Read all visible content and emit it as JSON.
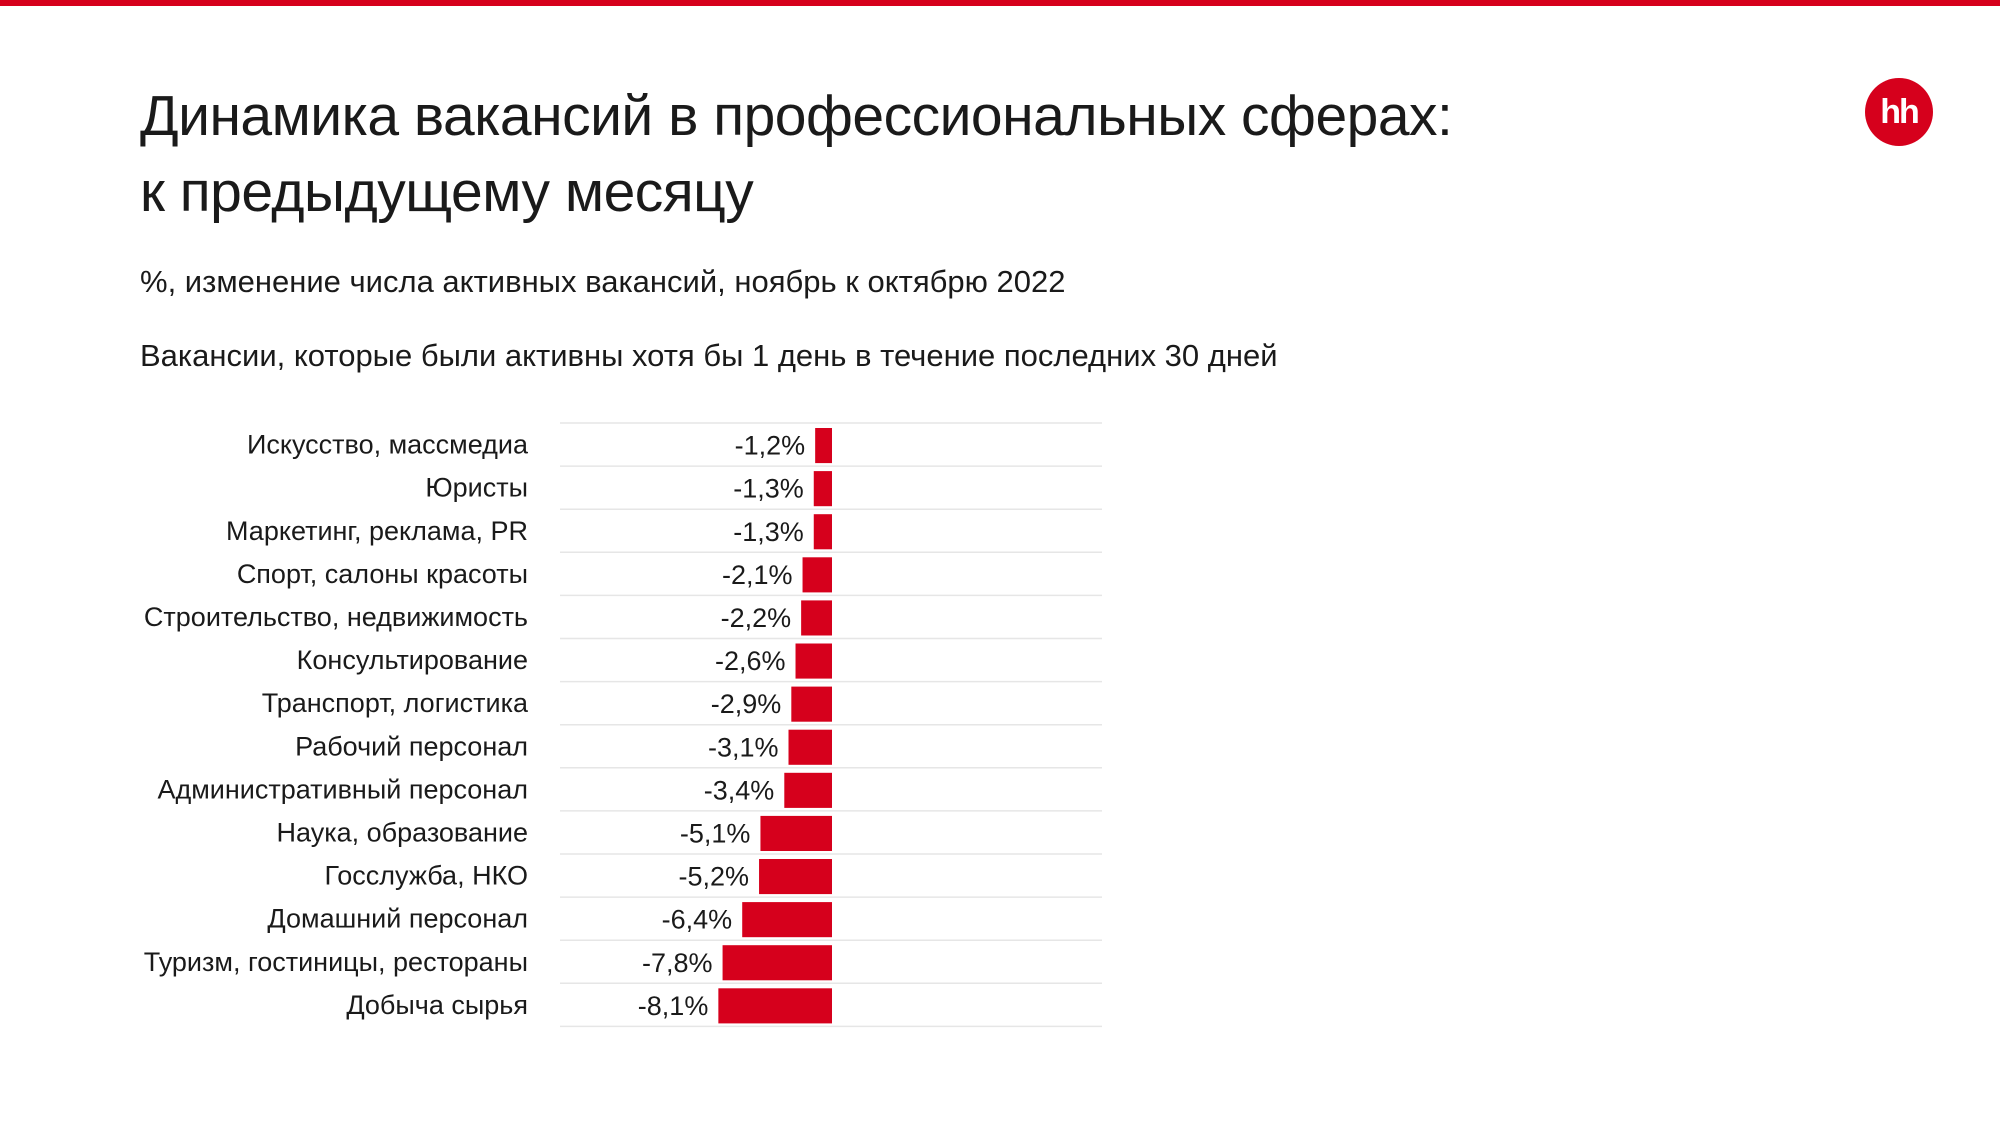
{
  "header": {
    "title_line1": "Динамика вакансий в профессиональных сферах:",
    "title_line2": "к предыдущему месяцу",
    "subtitle": "%, изменение числа активных вакансий, ноябрь к октябрю 2022",
    "note": "Вакансии, которые были активны хотя бы 1 день в течение последних 30 дней",
    "logo_text": "hh"
  },
  "colors": {
    "accent": "#d6001c",
    "gridline": "#e6e6e6",
    "text": "#1a1a1a"
  },
  "chart_data": {
    "type": "bar",
    "orientation": "horizontal",
    "title": "Динамика вакансий в профессиональных сферах: к предыдущему месяцу",
    "subtitle": "%, изменение числа активных вакансий, ноябрь к октябрю 2022",
    "grid": true,
    "categories": [
      "Искусство, массмедиа",
      "Юристы",
      "Маркетинг, реклама, PR",
      "Спорт, салоны красоты",
      "Строительство, недвижимость",
      "Консультирование",
      "Транспорт, логистика",
      "Рабочий персонал",
      "Административный персонал",
      "Наука, образование",
      "Госслужба, НКО",
      "Домашний персонал",
      "Туризм, гостиницы, рестораны",
      "Добыча сырья"
    ],
    "values": [
      -1.2,
      -1.3,
      -1.3,
      -2.1,
      -2.2,
      -2.6,
      -2.9,
      -3.1,
      -3.4,
      -5.1,
      -5.2,
      -6.4,
      -7.8,
      -8.1
    ],
    "labels": [
      "-1,2%",
      "-1,3%",
      "-1,3%",
      "-2,1%",
      "-2,2%",
      "-2,6%",
      "-2,9%",
      "-3,1%",
      "-3,4%",
      "-5,1%",
      "-5,2%",
      "-6,4%",
      "-7,8%",
      "-8,1%"
    ],
    "xlim": [
      -8.1,
      0
    ],
    "color": "#d6001c"
  }
}
